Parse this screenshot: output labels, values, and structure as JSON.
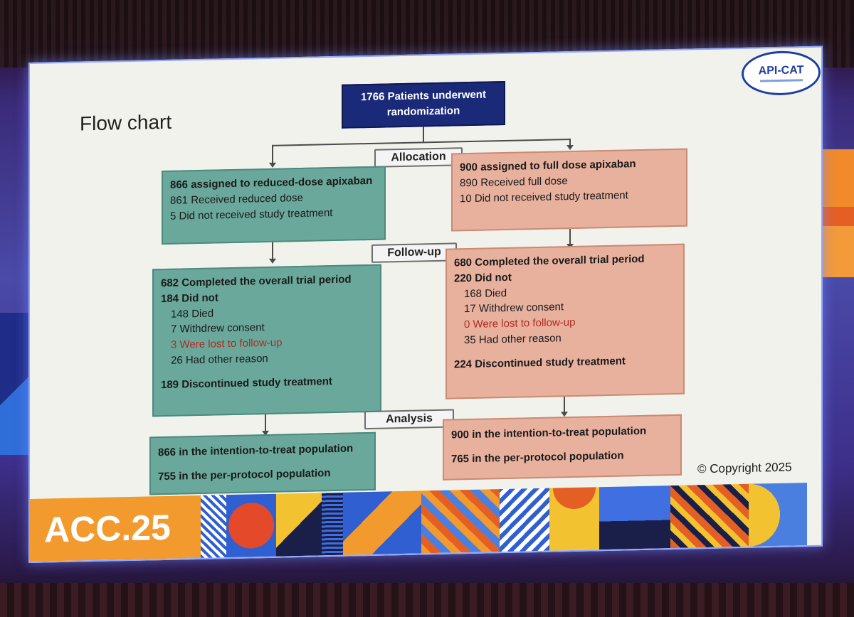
{
  "slide": {
    "title": "Flow chart",
    "logo": "API-CAT",
    "copyright": "© Copyright 2025"
  },
  "flow": {
    "top": "1766 Patients underwent randomization",
    "stages": [
      "Allocation",
      "Follow-up",
      "Analysis"
    ],
    "left": {
      "allocation": {
        "heading": "866 assigned to reduced-dose apixaban",
        "lines": [
          "861 Received reduced dose",
          "5 Did not received study treatment"
        ]
      },
      "followup": {
        "completed": "682 Completed the overall trial period",
        "did_not": "184 Did not",
        "reasons": [
          "148 Died",
          "7 Withdrew consent",
          "3 Were lost to follow-up",
          "26 Had other reason"
        ],
        "discontinued": "189 Discontinued study treatment"
      },
      "analysis": {
        "itt": "866 in the intention-to-treat population",
        "pp": "755 in the per-protocol population"
      }
    },
    "right": {
      "allocation": {
        "heading": "900 assigned to full dose apixaban",
        "lines": [
          "890 Received full dose",
          "10 Did not received study treatment"
        ]
      },
      "followup": {
        "completed": "680 Completed the overall trial period",
        "did_not": "220 Did not",
        "reasons": [
          "168 Died",
          "17 Withdrew consent",
          "0 Were lost to follow-up",
          "35 Had other reason"
        ],
        "discontinued": "224 Discontinued study treatment"
      },
      "analysis": {
        "itt": "900 in the intention-to-treat population",
        "pp": "765 in the per-protocol population"
      }
    }
  },
  "banner": {
    "brand": "ACC.25"
  },
  "colors": {
    "teal": "#6aa89c",
    "salmon": "#e8b19e",
    "navy": "#1a2a78"
  }
}
